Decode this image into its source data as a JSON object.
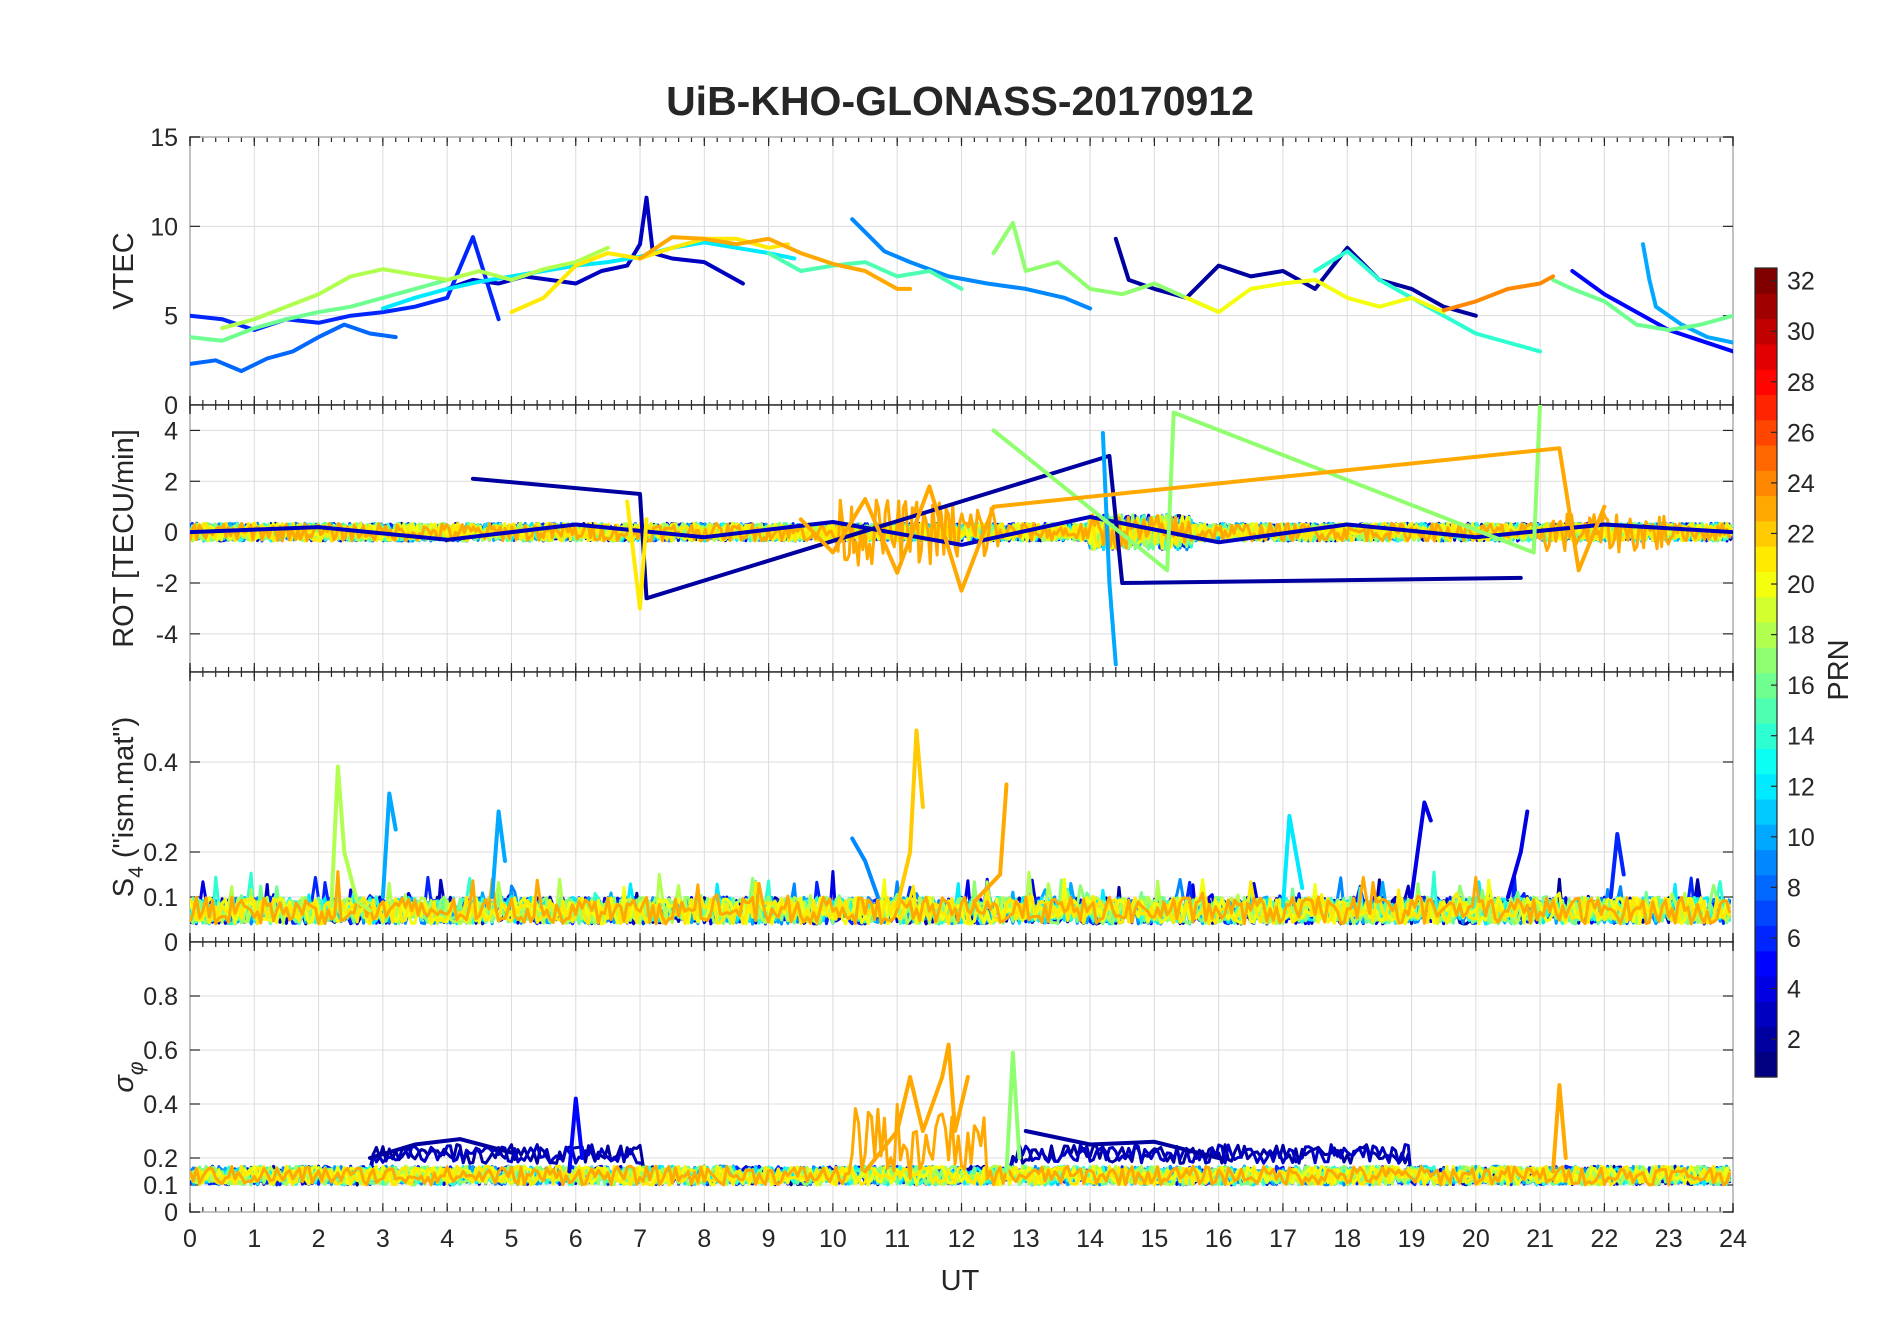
{
  "chart_data": {
    "type": "line",
    "title": "UiB-KHO-GLONASS-20170912",
    "xlabel": "UT",
    "xlim": [
      0,
      24
    ],
    "x_ticks": [
      "0",
      "1",
      "2",
      "3",
      "4",
      "5",
      "6",
      "7",
      "8",
      "9",
      "10",
      "11",
      "12",
      "13",
      "14",
      "15",
      "16",
      "17",
      "18",
      "19",
      "20",
      "21",
      "22",
      "23",
      "24"
    ],
    "colorbar": {
      "label": "PRN",
      "range": [
        1,
        32
      ],
      "colormap": "jet",
      "tick_labels": [
        "2",
        "4",
        "6",
        "8",
        "10",
        "12",
        "14",
        "16",
        "18",
        "20",
        "22",
        "24",
        "26",
        "28",
        "30",
        "32"
      ]
    },
    "panels": [
      {
        "id": "vtec",
        "ylabel": "VTEC",
        "ylim": [
          0,
          15
        ],
        "y_ticks": [
          0,
          5,
          10,
          15
        ],
        "y_tick_labels": [
          "0",
          "5",
          "10",
          "15"
        ],
        "series": [
          {
            "prn": 3,
            "x": [
              4.0,
              4.4,
              4.8,
              5.2,
              5.6,
              6.0,
              6.4,
              6.8,
              7.0,
              7.1,
              7.2,
              7.5,
              8.0,
              8.6
            ],
            "y": [
              6.5,
              7.0,
              6.8,
              7.2,
              7.0,
              6.8,
              7.5,
              7.8,
              9.0,
              11.6,
              8.5,
              8.2,
              8.0,
              6.8
            ]
          },
          {
            "prn": 2,
            "x": [
              14.4,
              14.6,
              15.0,
              15.5,
              16.0,
              16.5,
              17.0,
              17.5,
              18.0,
              18.5,
              19.0,
              19.5,
              20.0
            ],
            "y": [
              9.3,
              7.0,
              6.5,
              6.0,
              7.8,
              7.2,
              7.5,
              6.5,
              8.8,
              7.0,
              6.5,
              5.5,
              5.0
            ]
          },
          {
            "prn": 6,
            "x": [
              0.0,
              0.5,
              1.0,
              1.5,
              2.0,
              2.5,
              3.0,
              3.5,
              4.0,
              4.4,
              4.8
            ],
            "y": [
              5.0,
              4.8,
              4.2,
              4.8,
              4.6,
              5.0,
              5.2,
              5.5,
              6.0,
              9.4,
              4.8
            ]
          },
          {
            "prn": 5,
            "x": [
              21.5,
              22.0,
              22.5,
              23.0,
              23.5,
              24.0
            ],
            "y": [
              7.5,
              6.2,
              5.2,
              4.2,
              3.6,
              3.0
            ]
          },
          {
            "prn": 9,
            "x": [
              10.3,
              10.8,
              11.2,
              11.8,
              12.4,
              13.0,
              13.6,
              14.0
            ],
            "y": [
              10.4,
              8.6,
              8.0,
              7.2,
              6.8,
              6.5,
              6.0,
              5.4
            ]
          },
          {
            "prn": 8,
            "x": [
              0.0,
              0.4,
              0.8,
              1.2,
              1.6,
              2.0,
              2.4,
              2.8,
              3.2
            ],
            "y": [
              2.3,
              2.5,
              1.9,
              2.6,
              3.0,
              3.8,
              4.5,
              4.0,
              3.8
            ]
          },
          {
            "prn": 10,
            "x": [
              22.6,
              22.7,
              22.8,
              23.2,
              23.6,
              24.0
            ],
            "y": [
              9.0,
              7.0,
              5.5,
              4.5,
              3.8,
              3.5
            ]
          },
          {
            "prn": 12,
            "x": [
              3.0,
              3.5,
              4.0,
              4.5,
              5.0,
              5.5,
              6.0,
              6.5,
              7.0,
              7.5,
              8.0,
              8.5,
              9.0,
              9.4
            ],
            "y": [
              5.4,
              6.0,
              6.5,
              6.9,
              7.2,
              7.5,
              7.8,
              8.0,
              8.3,
              8.8,
              9.1,
              8.8,
              8.5,
              8.2
            ]
          },
          {
            "prn": 14,
            "x": [
              17.5,
              18.0,
              18.5,
              19.0,
              19.5,
              20.0,
              20.5,
              21.0
            ],
            "y": [
              7.5,
              8.6,
              7.0,
              6.0,
              5.0,
              4.0,
              3.5,
              3.0
            ]
          },
          {
            "prn": 15,
            "x": [
              9.0,
              9.5,
              10.0,
              10.5,
              11.0,
              11.5,
              12.0
            ],
            "y": [
              8.5,
              7.5,
              7.8,
              8.0,
              7.2,
              7.5,
              6.5
            ]
          },
          {
            "prn": 16,
            "x": [
              0.0,
              0.5,
              1.0,
              1.5,
              2.0,
              2.5,
              3.0,
              3.5,
              4.0
            ],
            "y": [
              3.8,
              3.6,
              4.3,
              4.8,
              5.2,
              5.5,
              6.0,
              6.5,
              7.0
            ]
          },
          {
            "prn": 17,
            "x": [
              12.5,
              12.8,
              13.0,
              13.5,
              14.0,
              14.5,
              15.0,
              15.5,
              16.0
            ],
            "y": [
              8.5,
              10.2,
              7.5,
              8.0,
              6.5,
              6.2,
              6.8,
              6.0,
              5.2
            ]
          },
          {
            "prn": 16,
            "x": [
              21.2,
              21.5,
              22.0,
              22.5,
              23.0,
              23.5,
              24.0
            ],
            "y": [
              7.0,
              6.5,
              5.8,
              4.5,
              4.2,
              4.5,
              5.0
            ]
          },
          {
            "prn": 18,
            "x": [
              0.5,
              1.0,
              1.5,
              2.0,
              2.5,
              3.0,
              3.5,
              4.0,
              4.5,
              5.0,
              5.5,
              6.0,
              6.5
            ],
            "y": [
              4.3,
              4.8,
              5.5,
              6.2,
              7.2,
              7.6,
              7.3,
              7.0,
              7.5,
              7.0,
              7.6,
              8.0,
              8.8
            ]
          },
          {
            "prn": 20,
            "x": [
              15.5,
              16.0,
              16.5,
              17.0,
              17.5,
              18.0,
              18.5,
              19.0,
              19.5
            ],
            "y": [
              6.0,
              5.2,
              6.5,
              6.8,
              7.0,
              6.0,
              5.5,
              6.0,
              5.2
            ]
          },
          {
            "prn": 21,
            "x": [
              5.0,
              5.5,
              6.0,
              6.5,
              7.0,
              7.5,
              8.0,
              8.5,
              9.0,
              9.3
            ],
            "y": [
              5.2,
              6.0,
              7.8,
              8.5,
              8.2,
              8.8,
              9.3,
              9.3,
              8.8,
              9.0
            ]
          },
          {
            "prn": 23,
            "x": [
              7.0,
              7.5,
              8.0,
              8.5,
              9.0,
              9.5,
              10.0,
              10.5,
              11.0,
              11.2
            ],
            "y": [
              8.2,
              9.4,
              9.3,
              9.0,
              9.3,
              8.5,
              7.9,
              7.5,
              6.5,
              6.5
            ]
          },
          {
            "prn": 24,
            "x": [
              19.5,
              20.0,
              20.5,
              21.0,
              21.2
            ],
            "y": [
              5.3,
              5.8,
              6.5,
              6.8,
              7.2
            ]
          }
        ]
      },
      {
        "id": "rot",
        "ylabel": "ROT [TECU/min]",
        "ylim": [
          -5.5,
          5
        ],
        "y_ticks": [
          -4,
          -2,
          0,
          2,
          4
        ],
        "y_tick_labels": [
          "-4",
          "-2",
          "0",
          "2",
          "4"
        ],
        "series": [
          {
            "prn": 3,
            "x": [
              0,
              2,
              4,
              6,
              8,
              10,
              12,
              14,
              16,
              18,
              20,
              22,
              24
            ],
            "y": [
              0,
              0.2,
              -0.3,
              0.3,
              -0.2,
              0.4,
              -0.5,
              0.6,
              -0.4,
              0.3,
              -0.2,
              0.3,
              0
            ]
          },
          {
            "prn": 2,
            "x": [
              4.4,
              7.0,
              7.1,
              14.3,
              14.5,
              20.7
            ],
            "y": [
              2.1,
              1.5,
              -2.6,
              3.0,
              -2.0,
              -1.8
            ]
          },
          {
            "prn": 10,
            "x": [
              14.2,
              14.3,
              14.4
            ],
            "y": [
              3.9,
              -2.0,
              -5.2
            ]
          },
          {
            "prn": 17,
            "x": [
              12.5,
              15.2,
              15.3,
              20.9,
              21.0
            ],
            "y": [
              4.0,
              -1.5,
              4.7,
              -0.8,
              5.1
            ]
          },
          {
            "prn": 21,
            "x": [
              6.8,
              7.0,
              7.1
            ],
            "y": [
              1.2,
              -3.0,
              0.5
            ]
          },
          {
            "prn": 23,
            "x": [
              9.5,
              10,
              10.5,
              11,
              11.5,
              12,
              12.5,
              21.3,
              21.6,
              22
            ],
            "y": [
              0.5,
              -0.8,
              1.3,
              -1.6,
              1.8,
              -2.3,
              1.0,
              3.3,
              -1.5,
              1.0
            ]
          }
        ]
      },
      {
        "id": "s4",
        "ylabel": "S4 (\"ism.mat\")",
        "ylim": [
          0,
          0.6
        ],
        "y_ticks": [
          0,
          0.1,
          0.2,
          0.4
        ],
        "y_tick_labels": [
          "0",
          "0.1",
          "0.2",
          "0.4"
        ],
        "series": [
          {
            "prn": 18,
            "x": [
              2.2,
              2.3,
              2.4,
              2.6,
              2.8
            ],
            "y": [
              0.08,
              0.39,
              0.2,
              0.09,
              0.07
            ]
          },
          {
            "prn": 10,
            "x": [
              3.0,
              3.1,
              3.2
            ],
            "y": [
              0.1,
              0.33,
              0.25
            ]
          },
          {
            "prn": 10,
            "x": [
              4.7,
              4.8,
              4.9
            ],
            "y": [
              0.1,
              0.29,
              0.18
            ]
          },
          {
            "prn": 9,
            "x": [
              10.3,
              10.5,
              10.7
            ],
            "y": [
              0.23,
              0.18,
              0.1
            ]
          },
          {
            "prn": 22,
            "x": [
              11.0,
              11.2,
              11.3,
              11.4
            ],
            "y": [
              0.08,
              0.2,
              0.47,
              0.3
            ]
          },
          {
            "prn": 23,
            "x": [
              12.2,
              12.6,
              12.7
            ],
            "y": [
              0.09,
              0.15,
              0.35
            ]
          },
          {
            "prn": 12,
            "x": [
              17.0,
              17.1,
              17.3
            ],
            "y": [
              0.08,
              0.28,
              0.12
            ]
          },
          {
            "prn": 4,
            "x": [
              19.0,
              19.2,
              19.3
            ],
            "y": [
              0.1,
              0.31,
              0.27
            ]
          },
          {
            "prn": 4,
            "x": [
              20.5,
              20.7,
              20.8
            ],
            "y": [
              0.1,
              0.2,
              0.29
            ]
          },
          {
            "prn": 6,
            "x": [
              22.1,
              22.2,
              22.3
            ],
            "y": [
              0.1,
              0.24,
              0.15
            ]
          }
        ]
      },
      {
        "id": "sigma_phi",
        "ylabel": "σφ",
        "ylim": [
          0,
          1
        ],
        "y_ticks": [
          0,
          0.1,
          0.2,
          0.4,
          0.6,
          0.8
        ],
        "y_tick_labels": [
          "0",
          "0.1",
          "0.2",
          "0.4",
          "0.6",
          "0.8"
        ],
        "series": [
          {
            "prn": 2,
            "x": [
              2.8,
              3.5,
              4.2,
              5.0
            ],
            "y": [
              0.2,
              0.25,
              0.27,
              0.22
            ]
          },
          {
            "prn": 5,
            "x": [
              5.9,
              6.0,
              6.1
            ],
            "y": [
              0.15,
              0.42,
              0.2
            ]
          },
          {
            "prn": 23,
            "x": [
              10.5,
              11.0,
              11.2,
              11.4,
              11.7,
              11.8,
              11.9,
              12.1
            ],
            "y": [
              0.15,
              0.3,
              0.5,
              0.3,
              0.5,
              0.62,
              0.3,
              0.5
            ]
          },
          {
            "prn": 17,
            "x": [
              12.7,
              12.8,
              12.9
            ],
            "y": [
              0.15,
              0.59,
              0.2
            ]
          },
          {
            "prn": 2,
            "x": [
              13.0,
              14.0,
              15.0,
              16.0
            ],
            "y": [
              0.3,
              0.25,
              0.26,
              0.2
            ]
          },
          {
            "prn": 23,
            "x": [
              21.2,
              21.3,
              21.4
            ],
            "y": [
              0.15,
              0.47,
              0.2
            ]
          }
        ]
      }
    ]
  }
}
